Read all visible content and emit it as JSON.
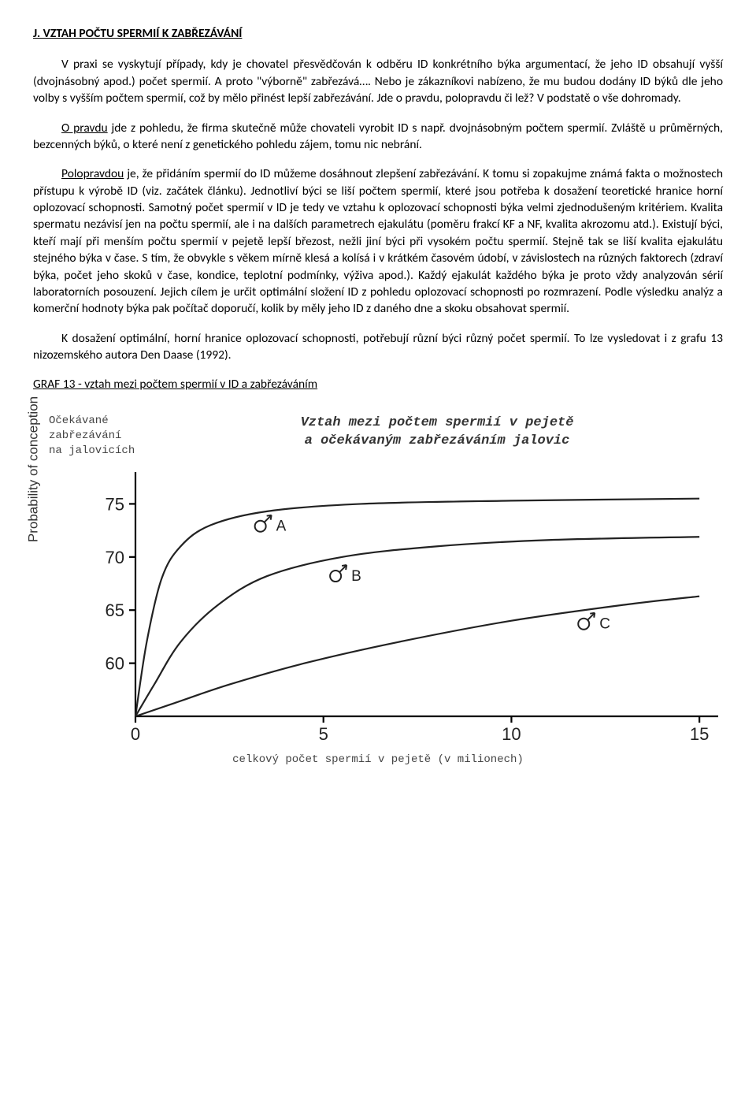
{
  "heading": "J. VZTAH POČTU SPERMIÍ K ZABŘEZÁVÁNÍ",
  "p1": "V praxi se vyskytují případy, kdy je chovatel přesvědčován k odběru ID konkrétního býka argumentací, že jeho ID obsahují vyšší (dvojnásobný apod.) počet spermií. A proto \"výborně\" zabřezává…. Nebo je zákazníkovi nabízeno, že mu budou dodány ID býků dle jeho volby s vyšším počtem spermií, což by mělo přinést lepší zabřezávání. Jde o pravdu, polopravdu či lež? V podstatě o vše dohromady.",
  "p2_lead": "O pravdu",
  "p2_rest": " jde z pohledu, že firma skutečně může chovateli vyrobit ID s např. dvojnásobným počtem spermií. Zvláště u průměrných, bezcenných býků, o které není z genetického pohledu zájem, tomu nic nebrání.",
  "p3_lead": "Polopravdou",
  "p3_rest": " je, že přidáním spermií do ID můžeme dosáhnout zlepšení zabřezávání. K tomu si zopakujme známá fakta o možnostech přístupu k výrobě ID (viz. začátek článku). Jednotliví býci se liší počtem spermií, které jsou potřeba k dosažení teoretické hranice horní oplozovací schopnosti. Samotný počet spermií v ID je tedy ve vztahu k oplozovací schopnosti býka velmi zjednodušeným kritériem. Kvalita spermatu nezávisí jen na počtu spermií, ale i na dalších parametrech ejakulátu (poměru frakcí KF a NF, kvalita akrozomu atd.). Existují býci, kteří mají při menším počtu spermií v pejetě lepší březost, nežli jiní býci při vysokém počtu spermií. Stejně tak se liší kvalita ejakulátu stejného býka v čase. S tím, že obvykle s věkem mírně klesá a kolísá i v krátkém časovém údobí, v závislostech na různých faktorech (zdraví býka, počet jeho skoků v čase, kondice, teplotní podmínky, výživa apod.). Každý ejakulát každého býka je proto vždy analyzován sérií laboratorních posouzení. Jejich cílem je určit optimální složení ID z pohledu oplozovací schopnosti po rozmrazení. Podle výsledku analýz a komerční hodnoty býka pak počítač doporučí, kolik by měly jeho ID z daného dne a skoku obsahovat spermií.",
  "p4": "K dosažení optimální, horní hranice oplozovací schopnosti, potřebují různí býci různý počet spermií. To lze vysledovat i z grafu 13 nizozemského autora Den Daase (1992).",
  "graph_caption": "GRAF 13 - vztah mezi počtem spermií v ID a zabřezáváním",
  "chart": {
    "type": "line",
    "header_left_line1": "Očekávané",
    "header_left_line2": "zabřezávání",
    "header_left_line3": "na jalovicích",
    "header_right_line1": "Vztah mezi počtem spermií v pejetě",
    "header_right_line2": "a očekávaným zabřezáváním jalovic",
    "ylabel": "Probability of conception",
    "xlabel": "celkový počet spermií v pejetě (v milionech)",
    "x_ticks": [
      0,
      5,
      10,
      15
    ],
    "y_ticks": [
      60,
      65,
      70,
      75
    ],
    "xlim": [
      0,
      15.5
    ],
    "ylim": [
      55,
      78
    ],
    "background_color": "#ffffff",
    "line_color": "#222222",
    "line_width": 2.2,
    "series": [
      {
        "name": "A",
        "label_symbol": "♂",
        "label_text": "A",
        "label_pos": {
          "x": 3.7,
          "y": 73.2
        },
        "points": [
          {
            "x": 0,
            "y": 55
          },
          {
            "x": 0.3,
            "y": 62
          },
          {
            "x": 0.7,
            "y": 68
          },
          {
            "x": 1.2,
            "y": 71
          },
          {
            "x": 2.0,
            "y": 73
          },
          {
            "x": 3.5,
            "y": 74.3
          },
          {
            "x": 6.0,
            "y": 75.0
          },
          {
            "x": 10.0,
            "y": 75.3
          },
          {
            "x": 15.0,
            "y": 75.5
          }
        ]
      },
      {
        "name": "B",
        "label_symbol": "♂",
        "label_text": "B",
        "label_pos": {
          "x": 5.7,
          "y": 68.5
        },
        "points": [
          {
            "x": 0,
            "y": 55
          },
          {
            "x": 0.5,
            "y": 58
          },
          {
            "x": 1.2,
            "y": 62
          },
          {
            "x": 2.2,
            "y": 65.5
          },
          {
            "x": 3.5,
            "y": 68.2
          },
          {
            "x": 5.5,
            "y": 70.0
          },
          {
            "x": 8.0,
            "y": 71.0
          },
          {
            "x": 11.0,
            "y": 71.6
          },
          {
            "x": 15.0,
            "y": 71.9
          }
        ]
      },
      {
        "name": "C",
        "label_symbol": "♂",
        "label_text": "C",
        "label_pos": {
          "x": 12.3,
          "y": 64.0
        },
        "points": [
          {
            "x": 0,
            "y": 55
          },
          {
            "x": 1.0,
            "y": 56.2
          },
          {
            "x": 2.5,
            "y": 58.0
          },
          {
            "x": 4.5,
            "y": 60.0
          },
          {
            "x": 7.0,
            "y": 62.0
          },
          {
            "x": 10.0,
            "y": 64.0
          },
          {
            "x": 13.0,
            "y": 65.5
          },
          {
            "x": 15.0,
            "y": 66.3
          }
        ]
      }
    ]
  }
}
